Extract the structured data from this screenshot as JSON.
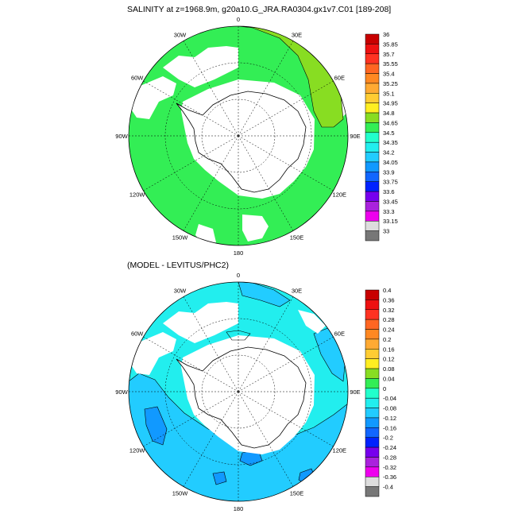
{
  "panels": [
    {
      "id": "top",
      "title": "SALINITY at z=1968.9m, g20a10.G_JRA.RA0304.gx1v7.C01 [189-208]",
      "ocean_color": "#33ee55",
      "lon_labels": [
        "0",
        "30E",
        "60E",
        "90E",
        "120E",
        "150E",
        "180",
        "150W",
        "120W",
        "90W",
        "60W",
        "30W"
      ],
      "colorbar": {
        "labels": [
          "36",
          "35.85",
          "35.7",
          "35.55",
          "35.4",
          "35.25",
          "35.1",
          "34.95",
          "34.8",
          "34.65",
          "34.5",
          "34.35",
          "34.2",
          "34.05",
          "33.9",
          "33.75",
          "33.6",
          "33.45",
          "33.3",
          "33.15",
          "33"
        ],
        "colors": [
          "#c80000",
          "#ee1111",
          "#ff3322",
          "#ff6622",
          "#ff8822",
          "#ffaa33",
          "#ffcc33",
          "#ffee22",
          "#88dd22",
          "#33ee55",
          "#22ffcc",
          "#22eeee",
          "#22ccff",
          "#1199ff",
          "#1166ff",
          "#0022ff",
          "#7700ee",
          "#aa22dd",
          "#ee00ee",
          "#dddddd",
          "#777777"
        ]
      }
    },
    {
      "id": "bottom",
      "title": "(MODEL - LEVITUS/PHC2)",
      "ocean_color": "#22eeee",
      "lon_labels": [
        "0",
        "30E",
        "60E",
        "90E",
        "120E",
        "150E",
        "180",
        "150W",
        "120W",
        "90W",
        "60W",
        "30W"
      ],
      "colorbar": {
        "labels": [
          "0.4",
          "0.36",
          "0.32",
          "0.28",
          "0.24",
          "0.2",
          "0.16",
          "0.12",
          "0.08",
          "0.04",
          "0",
          "-0.04",
          "-0.08",
          "-0.12",
          "-0.16",
          "-0.2",
          "-0.24",
          "-0.28",
          "-0.32",
          "-0.36",
          "-0.4"
        ],
        "colors": [
          "#c80000",
          "#ee1111",
          "#ff3322",
          "#ff6622",
          "#ff8822",
          "#ffaa33",
          "#ffcc33",
          "#ffee22",
          "#88dd22",
          "#33ee55",
          "#22ffcc",
          "#22eeee",
          "#22ccff",
          "#1199ff",
          "#1166ff",
          "#0022ff",
          "#7700ee",
          "#aa22dd",
          "#ee00ee",
          "#dddddd",
          "#777777"
        ]
      }
    }
  ]
}
